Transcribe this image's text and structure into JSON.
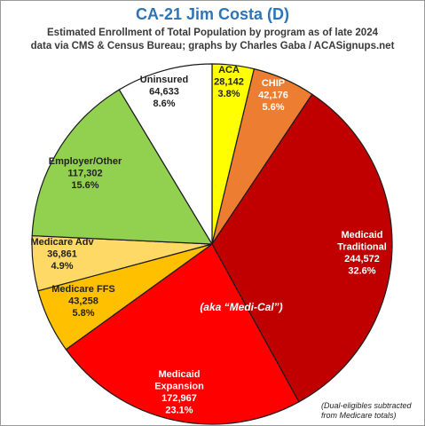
{
  "title": "CA-21 Jim Costa (D)",
  "subtitle_1": "Estimated Enrollment of Total Population by program as of late 2024",
  "subtitle_2": "data via CMS & Census Bureau; graphs by Charles Gaba / ACASignups.net",
  "note": "(Dual-eligibles subtracted\nfrom Medicare totals)",
  "center_annotation": "(aka “Medi-Cal”)",
  "chart_data": {
    "type": "pie",
    "title": "CA-21 Jim Costa (D)",
    "slices": [
      {
        "label": "ACA",
        "value": 28142,
        "value_text": "28,142",
        "percent_text": "3.8%",
        "color": "#ffff00",
        "text_color": "#222222"
      },
      {
        "label": "CHIP",
        "value": 42176,
        "value_text": "42,176",
        "percent_text": "5.6%",
        "color": "#ed7d31",
        "text_color": "#ffffff"
      },
      {
        "label": "Medicaid Traditional",
        "value": 244572,
        "value_text": "244,572",
        "percent_text": "32.6%",
        "color": "#c00000",
        "text_color": "#ffffff"
      },
      {
        "label": "Medicaid Expansion",
        "value": 172967,
        "value_text": "172,967",
        "percent_text": "23.1%",
        "color": "#ff0000",
        "text_color": "#ffffff"
      },
      {
        "label": "Medicare FFS",
        "value": 43258,
        "value_text": "43,258",
        "percent_text": "5.8%",
        "color": "#ffc000",
        "text_color": "#222222"
      },
      {
        "label": "Medicare Adv",
        "value": 36861,
        "value_text": "36,861",
        "percent_text": "4.9%",
        "color": "#ffd966",
        "text_color": "#222222"
      },
      {
        "label": "Employer/Other",
        "value": 117302,
        "value_text": "117,302",
        "percent_text": "15.6%",
        "color": "#92d050",
        "text_color": "#222222"
      },
      {
        "label": "Uninsured",
        "value": 64633,
        "value_text": "64,633",
        "percent_text": "8.6%",
        "color": "#ffffff",
        "text_color": "#222222"
      }
    ]
  }
}
